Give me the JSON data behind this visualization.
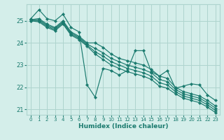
{
  "xlabel": "Humidex (Indice chaleur)",
  "bg_color": "#d4eeea",
  "grid_color": "#aed4ce",
  "line_color": "#1a7a6e",
  "xlim": [
    -0.5,
    23.5
  ],
  "ylim": [
    20.75,
    25.75
  ],
  "yticks": [
    21,
    22,
    23,
    24,
    25
  ],
  "xticks": [
    0,
    1,
    2,
    3,
    4,
    5,
    6,
    7,
    8,
    9,
    10,
    11,
    12,
    13,
    14,
    15,
    16,
    17,
    18,
    19,
    20,
    21,
    22,
    23
  ],
  "series": [
    [
      25.1,
      25.5,
      25.1,
      25.0,
      25.3,
      24.7,
      24.5,
      22.1,
      21.55,
      22.85,
      22.75,
      22.55,
      22.75,
      23.65,
      23.65,
      22.7,
      22.5,
      22.75,
      21.95,
      22.05,
      22.15,
      22.1,
      21.65,
      21.4
    ],
    [
      25.05,
      25.1,
      24.85,
      24.7,
      25.0,
      24.5,
      24.3,
      24.0,
      24.0,
      23.8,
      23.5,
      23.3,
      23.2,
      23.1,
      23.0,
      22.8,
      22.5,
      22.4,
      22.0,
      21.8,
      21.7,
      21.6,
      21.4,
      21.15
    ],
    [
      25.05,
      25.05,
      24.8,
      24.65,
      24.95,
      24.45,
      24.25,
      23.95,
      23.75,
      23.55,
      23.3,
      23.15,
      23.0,
      22.9,
      22.8,
      22.65,
      22.35,
      22.25,
      21.9,
      21.7,
      21.6,
      21.5,
      21.3,
      21.05
    ],
    [
      25.0,
      25.0,
      24.75,
      24.6,
      24.9,
      24.4,
      24.2,
      23.9,
      23.6,
      23.4,
      23.15,
      23.0,
      22.85,
      22.75,
      22.65,
      22.5,
      22.2,
      22.1,
      21.8,
      21.6,
      21.5,
      21.4,
      21.2,
      20.95
    ],
    [
      25.0,
      24.95,
      24.7,
      24.55,
      24.85,
      24.35,
      24.15,
      23.85,
      23.5,
      23.25,
      23.0,
      22.85,
      22.7,
      22.6,
      22.5,
      22.35,
      22.05,
      21.95,
      21.7,
      21.5,
      21.4,
      21.3,
      21.1,
      20.85
    ]
  ]
}
